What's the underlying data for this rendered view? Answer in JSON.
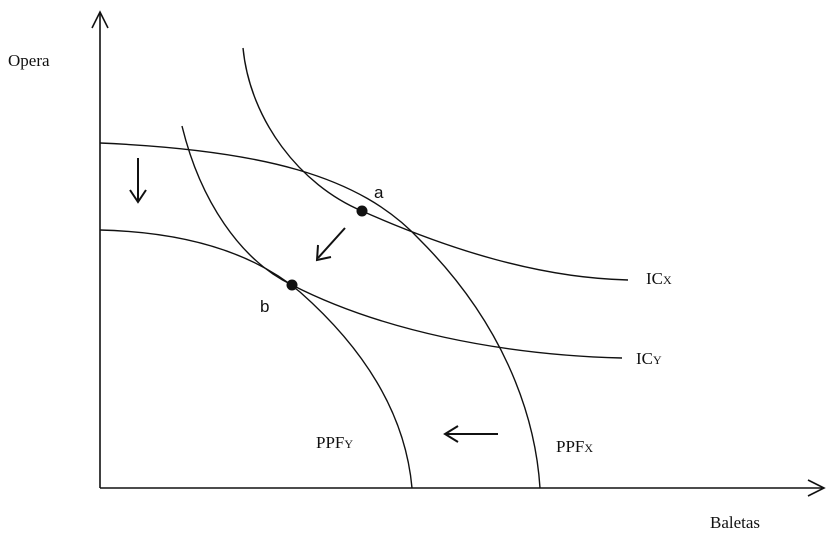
{
  "axes": {
    "y_label": "Opera",
    "x_label": "Baletas"
  },
  "curves": {
    "ic_x": {
      "main": "IC",
      "sub": "X"
    },
    "ic_y": {
      "main": "IC",
      "sub": "Y"
    },
    "ppf_y": {
      "main": "PPF",
      "sub": "Y"
    },
    "ppf_x": {
      "main": "PPF",
      "sub": "X"
    }
  },
  "points": {
    "a": "a",
    "b": "b"
  }
}
